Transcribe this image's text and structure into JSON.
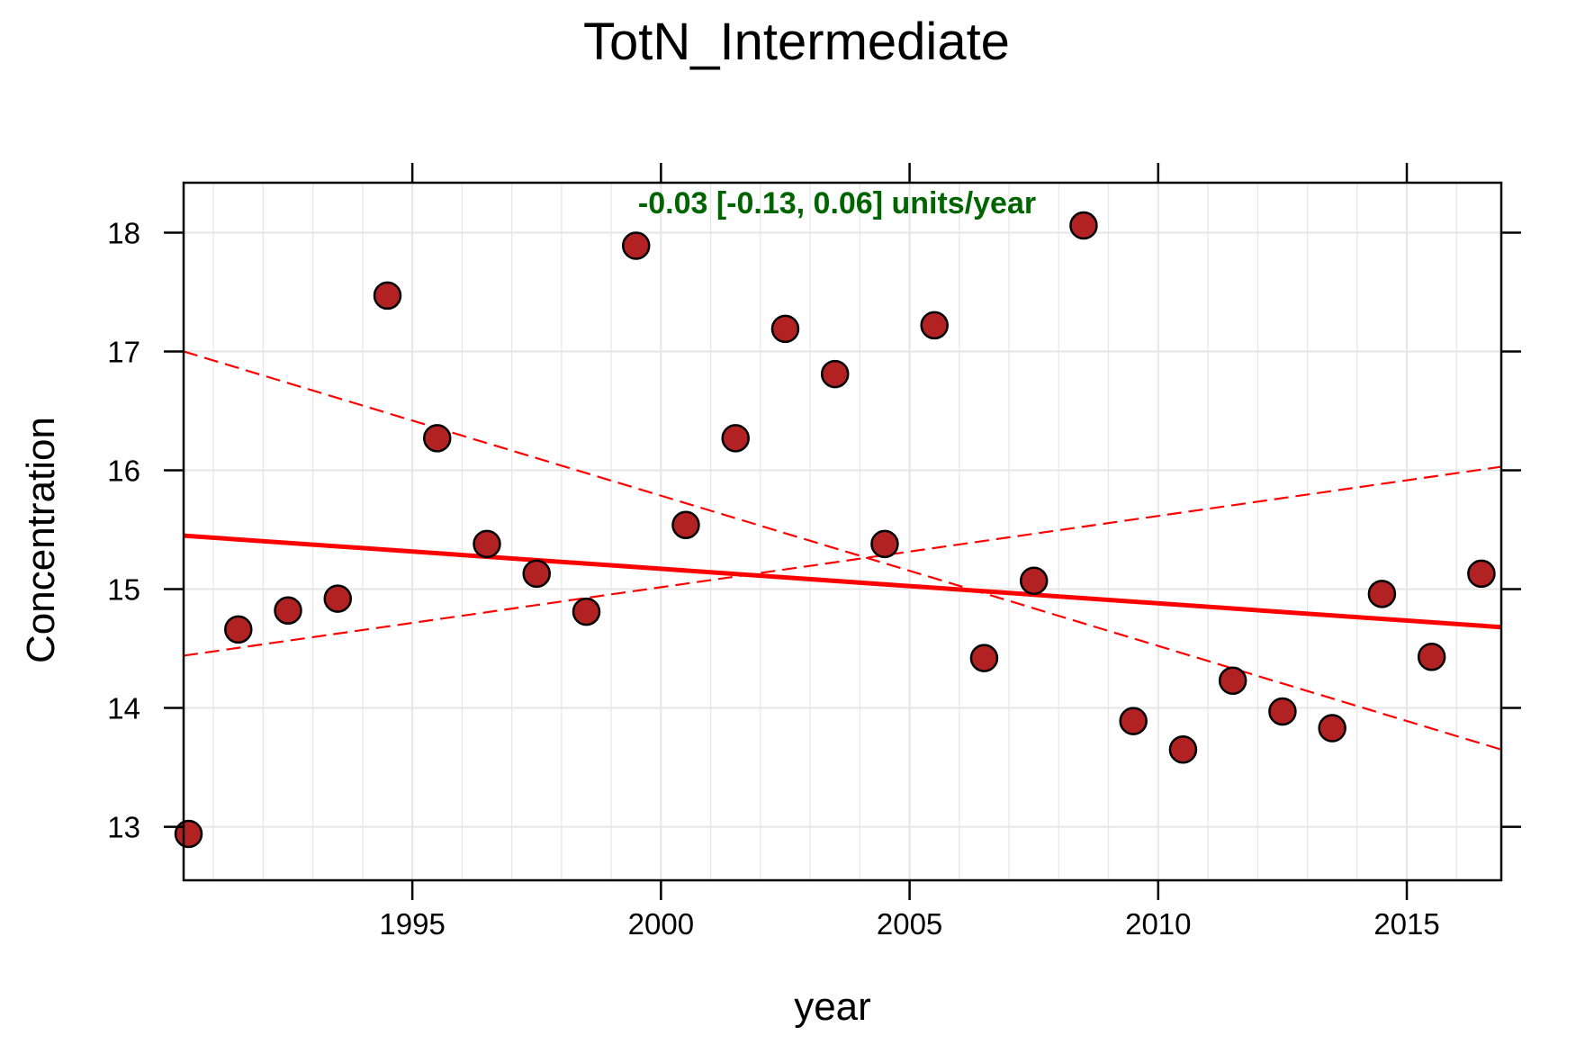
{
  "chart_data": {
    "type": "scatter",
    "title": "TotN_Intermediate",
    "xlabel": "year",
    "ylabel": "Concentration",
    "xlim": [
      1990.4,
      2016.9
    ],
    "ylim": [
      12.55,
      18.42
    ],
    "x_ticks": [
      1995,
      2000,
      2005,
      2010,
      2015
    ],
    "y_ticks": [
      13,
      14,
      15,
      16,
      17,
      18
    ],
    "grid": true,
    "annotation": "-0.03 [-0.13, 0.06] units/year",
    "colors": {
      "points_fill": "#b22222",
      "points_stroke": "#000000",
      "trend_line": "#ff0000",
      "annotation": "#006400",
      "grid": "#e6e6e6"
    },
    "points": [
      {
        "x": 1990.5,
        "y": 12.94
      },
      {
        "x": 1991.5,
        "y": 14.66
      },
      {
        "x": 1992.5,
        "y": 14.82
      },
      {
        "x": 1993.5,
        "y": 14.92
      },
      {
        "x": 1994.5,
        "y": 17.47
      },
      {
        "x": 1995.5,
        "y": 16.27
      },
      {
        "x": 1996.5,
        "y": 15.38
      },
      {
        "x": 1997.5,
        "y": 15.13
      },
      {
        "x": 1998.5,
        "y": 14.81
      },
      {
        "x": 1999.5,
        "y": 17.89
      },
      {
        "x": 2000.5,
        "y": 15.54
      },
      {
        "x": 2001.5,
        "y": 16.27
      },
      {
        "x": 2002.5,
        "y": 17.19
      },
      {
        "x": 2003.5,
        "y": 16.81
      },
      {
        "x": 2004.5,
        "y": 15.38
      },
      {
        "x": 2005.5,
        "y": 17.22
      },
      {
        "x": 2006.5,
        "y": 14.42
      },
      {
        "x": 2007.5,
        "y": 15.07
      },
      {
        "x": 2008.5,
        "y": 18.06
      },
      {
        "x": 2009.5,
        "y": 13.89
      },
      {
        "x": 2010.5,
        "y": 13.65
      },
      {
        "x": 2011.5,
        "y": 14.23
      },
      {
        "x": 2012.5,
        "y": 13.97
      },
      {
        "x": 2013.5,
        "y": 13.83
      },
      {
        "x": 2014.5,
        "y": 14.96
      },
      {
        "x": 2015.5,
        "y": 14.43
      },
      {
        "x": 2016.5,
        "y": 15.13
      }
    ],
    "trend_line": {
      "x": [
        1990.4,
        2016.9
      ],
      "y": [
        15.45,
        14.68
      ]
    },
    "confidence_lines": [
      {
        "x": [
          1990.4,
          2016.9
        ],
        "y": [
          17.0,
          13.65
        ]
      },
      {
        "x": [
          1990.4,
          2016.9
        ],
        "y": [
          14.44,
          16.03
        ]
      }
    ]
  }
}
